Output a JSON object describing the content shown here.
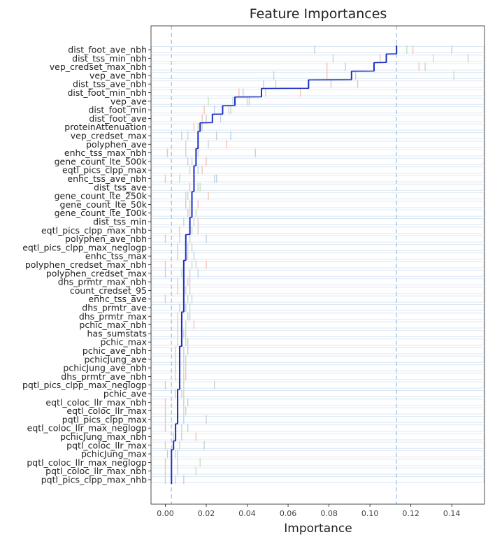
{
  "chart_data": {
    "type": "bar",
    "orientation": "horizontal",
    "title": "Feature Importances",
    "xlabel": "Importance",
    "ylabel": "",
    "xlim": [
      -0.007,
      0.156
    ],
    "xticks": [
      "0.00",
      "0.02",
      "0.04",
      "0.06",
      "0.08",
      "0.10",
      "0.12",
      "0.14"
    ],
    "xtick_values": [
      0.0,
      0.02,
      0.04,
      0.06,
      0.08,
      0.1,
      0.12,
      0.14
    ],
    "reference_lines": [
      0.003,
      0.113
    ],
    "colors": {
      "mean": "#1f2fbf",
      "row_band": "#dce8f4",
      "ref_line": "#a9c8ea",
      "light_blue": "#b9d3ea",
      "light_red": "#f4c3b4",
      "light_green": "#c3e1b9",
      "light_gray": "#cfcfcf"
    },
    "categories": [
      "dist_foot_ave_nbh",
      "dist_tss_min_nbh",
      "vep_credset_max_nbh",
      "vep_ave_nbh",
      "dist_tss_ave_nbh",
      "dist_foot_min_nbh",
      "vep_ave",
      "dist_foot_min",
      "dist_foot_ave",
      "proteinAttenuation",
      "vep_credset_max",
      "polyphen_ave",
      "enhc_tss_max_nbh",
      "gene_count_lte_500k",
      "eqtl_pics_clpp_max",
      "enhc_tss_ave_nbh",
      "dist_tss_ave",
      "gene_count_lte_250k",
      "gene_count_lte_50k",
      "gene_count_lte_100k",
      "dist_tss_min",
      "eqtl_pics_clpp_max_nhb",
      "polyphen_ave_nbh",
      "eqtl_pics_clpp_max_neglogp",
      "enhc_tss_max",
      "polyphen_credset_max_nbh",
      "polyphen_credset_max",
      "dhs_prmtr_max_nbh",
      "count_credset_95",
      "enhc_tss_ave",
      "dhs_prmtr_ave",
      "dhs_prmtr_max",
      "pchic_max_nbh",
      "has_sumstats",
      "pchic_max",
      "pchic_ave_nbh",
      "pchicJung_ave",
      "pchicJung_ave_nbh",
      "dhs_prmtr_ave_nbh",
      "pqtl_pics_clpp_max_neglogp",
      "pchic_ave",
      "eqtl_coloc_llr_max_nbh",
      "eqtl_coloc_llr_max",
      "pqtl_pics_clpp_max",
      "eqtl_coloc_llr_max_neglogp",
      "pchicJung_max_nbh",
      "pqtl_coloc_llr_max",
      "pchicJung_max",
      "pqtl_coloc_llr_max_neglogp",
      "pqtl_coloc_llr_max_nbh",
      "pqtl_pics_clpp_max_nhb"
    ],
    "values": [
      0.113,
      0.108,
      0.102,
      0.091,
      0.07,
      0.047,
      0.034,
      0.028,
      0.023,
      0.017,
      0.016,
      0.016,
      0.015,
      0.015,
      0.014,
      0.014,
      0.014,
      0.013,
      0.013,
      0.013,
      0.012,
      0.012,
      0.01,
      0.01,
      0.01,
      0.009,
      0.009,
      0.009,
      0.009,
      0.009,
      0.009,
      0.008,
      0.008,
      0.008,
      0.008,
      0.007,
      0.007,
      0.007,
      0.007,
      0.007,
      0.006,
      0.006,
      0.006,
      0.006,
      0.005,
      0.005,
      0.004,
      0.003,
      0.003,
      0.003,
      0.003
    ],
    "replicates": [
      [
        [
          0.073,
          "b"
        ],
        [
          0.121,
          "r"
        ],
        [
          0.118,
          "g"
        ],
        [
          0.14,
          "k"
        ]
      ],
      [
        [
          0.082,
          "b"
        ],
        [
          0.105,
          "r"
        ],
        [
          0.131,
          "g"
        ],
        [
          0.148,
          "k"
        ]
      ],
      [
        [
          0.088,
          "b"
        ],
        [
          0.079,
          "r"
        ],
        [
          0.124,
          "r"
        ],
        [
          0.127,
          "k"
        ]
      ],
      [
        [
          0.053,
          "b"
        ],
        [
          0.079,
          "r"
        ],
        [
          0.141,
          "g"
        ],
        [
          0.093,
          "k"
        ]
      ],
      [
        [
          0.048,
          "b"
        ],
        [
          0.081,
          "r"
        ],
        [
          0.054,
          "g"
        ],
        [
          0.094,
          "r"
        ]
      ],
      [
        [
          0.036,
          "r"
        ],
        [
          0.066,
          "r"
        ],
        [
          0.049,
          "k"
        ],
        [
          0.038,
          "b"
        ]
      ],
      [
        [
          0.021,
          "g"
        ],
        [
          0.04,
          "r"
        ],
        [
          0.041,
          "k"
        ],
        [
          0.033,
          "b"
        ]
      ],
      [
        [
          0.024,
          "b"
        ],
        [
          0.019,
          "r"
        ],
        [
          0.031,
          "g"
        ],
        [
          0.032,
          "k"
        ]
      ],
      [
        [
          0.018,
          "r"
        ],
        [
          0.02,
          "k"
        ],
        [
          0.027,
          "b"
        ]
      ],
      [
        [
          0.014,
          "r"
        ],
        [
          0.018,
          "k"
        ],
        [
          0.016,
          "g"
        ]
      ],
      [
        [
          0.008,
          "r"
        ],
        [
          0.025,
          "k"
        ],
        [
          0.032,
          "b"
        ],
        [
          0.011,
          "g"
        ]
      ],
      [
        [
          0.01,
          "g"
        ],
        [
          0.03,
          "r"
        ],
        [
          0.021,
          "k"
        ]
      ],
      [
        [
          0.001,
          "r"
        ],
        [
          0.044,
          "b"
        ],
        [
          0.01,
          "g"
        ],
        [
          0.016,
          "k"
        ]
      ],
      [
        [
          0.013,
          "g"
        ],
        [
          0.02,
          "r"
        ],
        [
          0.011,
          "k"
        ]
      ],
      [
        [
          0.012,
          "g"
        ],
        [
          0.018,
          "r"
        ],
        [
          0.016,
          "b"
        ]
      ],
      [
        [
          0.0,
          "r"
        ],
        [
          0.007,
          "g"
        ],
        [
          0.024,
          "k"
        ],
        [
          0.025,
          "b"
        ]
      ],
      [
        [
          0.012,
          "r"
        ],
        [
          0.017,
          "g"
        ],
        [
          0.016,
          "k"
        ]
      ],
      [
        [
          0.01,
          "g"
        ],
        [
          0.021,
          "r"
        ],
        [
          0.011,
          "k"
        ]
      ],
      [
        [
          0.012,
          "g"
        ],
        [
          0.016,
          "r"
        ],
        [
          0.01,
          "k"
        ]
      ],
      [
        [
          0.011,
          "r"
        ],
        [
          0.015,
          "g"
        ],
        [
          0.012,
          "b"
        ]
      ],
      [
        [
          0.009,
          "g"
        ],
        [
          0.016,
          "r"
        ],
        [
          0.014,
          "k"
        ]
      ],
      [
        [
          0.007,
          "r"
        ],
        [
          0.013,
          "g"
        ],
        [
          0.016,
          "k"
        ]
      ],
      [
        [
          0.0,
          "r"
        ],
        [
          0.007,
          "g"
        ],
        [
          0.02,
          "b"
        ],
        [
          0.012,
          "k"
        ]
      ],
      [
        [
          0.006,
          "r"
        ],
        [
          0.011,
          "g"
        ],
        [
          0.013,
          "k"
        ]
      ],
      [
        [
          0.006,
          "k"
        ],
        [
          0.014,
          "b"
        ],
        [
          0.011,
          "r"
        ]
      ],
      [
        [
          0.0,
          "r"
        ],
        [
          0.015,
          "k"
        ],
        [
          0.02,
          "r"
        ],
        [
          0.013,
          "g"
        ]
      ],
      [
        [
          0.0,
          "r"
        ],
        [
          0.016,
          "b"
        ],
        [
          0.008,
          "g"
        ],
        [
          0.012,
          "k"
        ]
      ],
      [
        [
          0.006,
          "g"
        ],
        [
          0.011,
          "r"
        ],
        [
          0.012,
          "k"
        ]
      ],
      [
        [
          0.006,
          "r"
        ],
        [
          0.012,
          "k"
        ],
        [
          0.01,
          "g"
        ]
      ],
      [
        [
          0.0,
          "r"
        ],
        [
          0.013,
          "g"
        ],
        [
          0.011,
          "k"
        ]
      ],
      [
        [
          0.007,
          "r"
        ],
        [
          0.012,
          "g"
        ],
        [
          0.01,
          "k"
        ]
      ],
      [
        [
          0.006,
          "g"
        ],
        [
          0.012,
          "k"
        ],
        [
          0.011,
          "b"
        ]
      ],
      [
        [
          0.006,
          "k"
        ],
        [
          0.014,
          "r"
        ],
        [
          0.01,
          "g"
        ]
      ],
      [
        [
          0.006,
          "g"
        ],
        [
          0.01,
          "k"
        ],
        [
          0.009,
          "r"
        ]
      ],
      [
        [
          0.006,
          "r"
        ],
        [
          0.011,
          "k"
        ],
        [
          0.01,
          "g"
        ]
      ],
      [
        [
          0.005,
          "g"
        ],
        [
          0.011,
          "b"
        ],
        [
          0.009,
          "k"
        ]
      ],
      [
        [
          0.005,
          "r"
        ],
        [
          0.01,
          "g"
        ],
        [
          0.009,
          "k"
        ]
      ],
      [
        [
          0.005,
          "k"
        ],
        [
          0.009,
          "g"
        ],
        [
          0.01,
          "r"
        ]
      ],
      [
        [
          0.005,
          "g"
        ],
        [
          0.01,
          "k"
        ],
        [
          0.009,
          "r"
        ]
      ],
      [
        [
          0.0,
          "r"
        ],
        [
          0.024,
          "k"
        ],
        [
          0.009,
          "g"
        ]
      ],
      [
        [
          0.005,
          "k"
        ],
        [
          0.009,
          "g"
        ],
        [
          0.008,
          "r"
        ]
      ],
      [
        [
          0.0,
          "r"
        ],
        [
          0.009,
          "b"
        ],
        [
          0.011,
          "k"
        ]
      ],
      [
        [
          0.0,
          "r"
        ],
        [
          0.009,
          "g"
        ],
        [
          0.01,
          "k"
        ]
      ],
      [
        [
          0.0,
          "r"
        ],
        [
          0.02,
          "k"
        ],
        [
          0.009,
          "b"
        ]
      ],
      [
        [
          0.0,
          "r"
        ],
        [
          0.011,
          "b"
        ],
        [
          0.008,
          "g"
        ]
      ],
      [
        [
          0.004,
          "g"
        ],
        [
          0.015,
          "r"
        ],
        [
          0.008,
          "k"
        ]
      ],
      [
        [
          0.0,
          "r"
        ],
        [
          0.019,
          "k"
        ],
        [
          0.007,
          "g"
        ]
      ],
      [
        [
          0.001,
          "k"
        ],
        [
          0.006,
          "b"
        ],
        [
          0.005,
          "g"
        ]
      ],
      [
        [
          0.0,
          "r"
        ],
        [
          0.017,
          "g"
        ],
        [
          0.006,
          "k"
        ]
      ],
      [
        [
          0.0,
          "r"
        ],
        [
          0.015,
          "g"
        ],
        [
          0.006,
          "k"
        ]
      ],
      [
        [
          0.005,
          "g"
        ],
        [
          0.009,
          "k"
        ],
        [
          0.0,
          "r"
        ]
      ]
    ]
  }
}
